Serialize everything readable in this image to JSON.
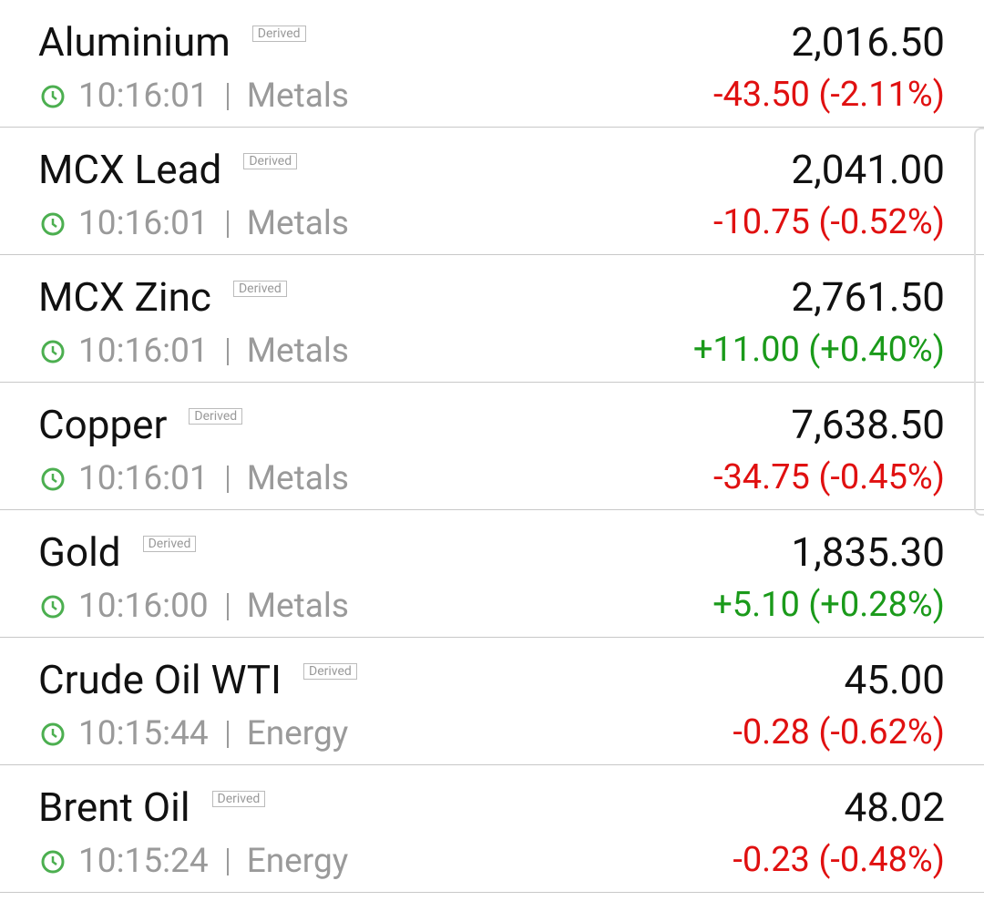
{
  "rows": [
    {
      "name": "Aluminium",
      "badge": "Derived",
      "time": "10:16:01",
      "category": "Metals",
      "price": "2,016.50",
      "change": "-43.50 (-2.11%)"
    },
    {
      "name": "MCX Lead",
      "badge": "Derived",
      "time": "10:16:01",
      "category": "Metals",
      "price": "2,041.00",
      "change": "-10.75 (-0.52%)"
    },
    {
      "name": "MCX Zinc",
      "badge": "Derived",
      "time": "10:16:01",
      "category": "Metals",
      "price": "2,761.50",
      "change": "+11.00 (+0.40%)"
    },
    {
      "name": "Copper",
      "badge": "Derived",
      "time": "10:16:01",
      "category": "Metals",
      "price": "7,638.50",
      "change": "-34.75 (-0.45%)"
    },
    {
      "name": "Gold",
      "badge": "Derived",
      "time": "10:16:00",
      "category": "Metals",
      "price": "1,835.30",
      "change": "+5.10 (+0.28%)"
    },
    {
      "name": "Crude Oil WTI",
      "badge": "Derived",
      "time": "10:15:44",
      "category": "Energy",
      "price": "45.00",
      "change": "-0.28 (-0.62%)"
    },
    {
      "name": "Brent Oil",
      "badge": "Derived",
      "time": "10:15:24",
      "category": "Energy",
      "price": "48.02",
      "change": "-0.23 (-0.48%)"
    }
  ]
}
